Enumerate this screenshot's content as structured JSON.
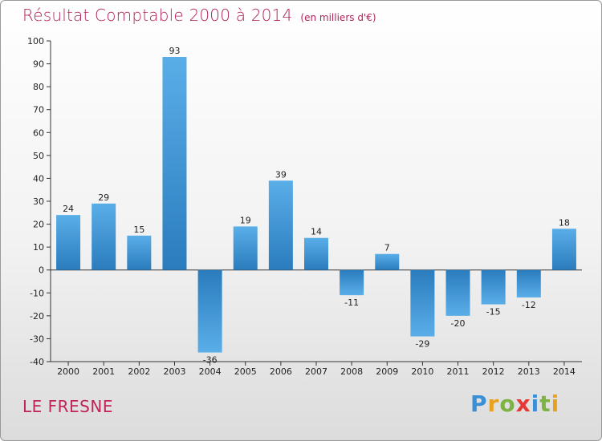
{
  "title": {
    "main": "Résultat Comptable 2000 à 2014",
    "unit": "(en milliers d'€)"
  },
  "commune": "LE FRESNE",
  "logo": {
    "letters": [
      {
        "char": "P",
        "color": "#3b8fd6"
      },
      {
        "char": "r",
        "color": "#e8a21e"
      },
      {
        "char": "o",
        "color": "#7cb342"
      },
      {
        "char": "x",
        "color": "#e53935"
      },
      {
        "char": "i",
        "color": "#3b8fd6"
      },
      {
        "char": "t",
        "color": "#7cb342"
      },
      {
        "char": "i",
        "color": "#e8a21e"
      }
    ]
  },
  "chart_data": {
    "type": "bar",
    "title": "Résultat Comptable 2000 à 2014",
    "subtitle": "(en milliers d'€)",
    "xlabel": "",
    "ylabel": "",
    "ylim": [
      -40,
      100
    ],
    "yticks": [
      -40,
      -30,
      -20,
      -10,
      0,
      10,
      20,
      30,
      40,
      50,
      60,
      70,
      80,
      90,
      100
    ],
    "categories": [
      "2000",
      "2001",
      "2002",
      "2003",
      "2004",
      "2005",
      "2006",
      "2007",
      "2008",
      "2009",
      "2010",
      "2011",
      "2012",
      "2013",
      "2014"
    ],
    "values": [
      24,
      29,
      15,
      93,
      -36,
      19,
      39,
      14,
      -11,
      7,
      -29,
      -20,
      -15,
      -12,
      18
    ],
    "grid": false,
    "colors": {
      "bar_light": "#5aaee8",
      "bar_dark": "#2a7cbd",
      "axis": "#333333"
    }
  }
}
